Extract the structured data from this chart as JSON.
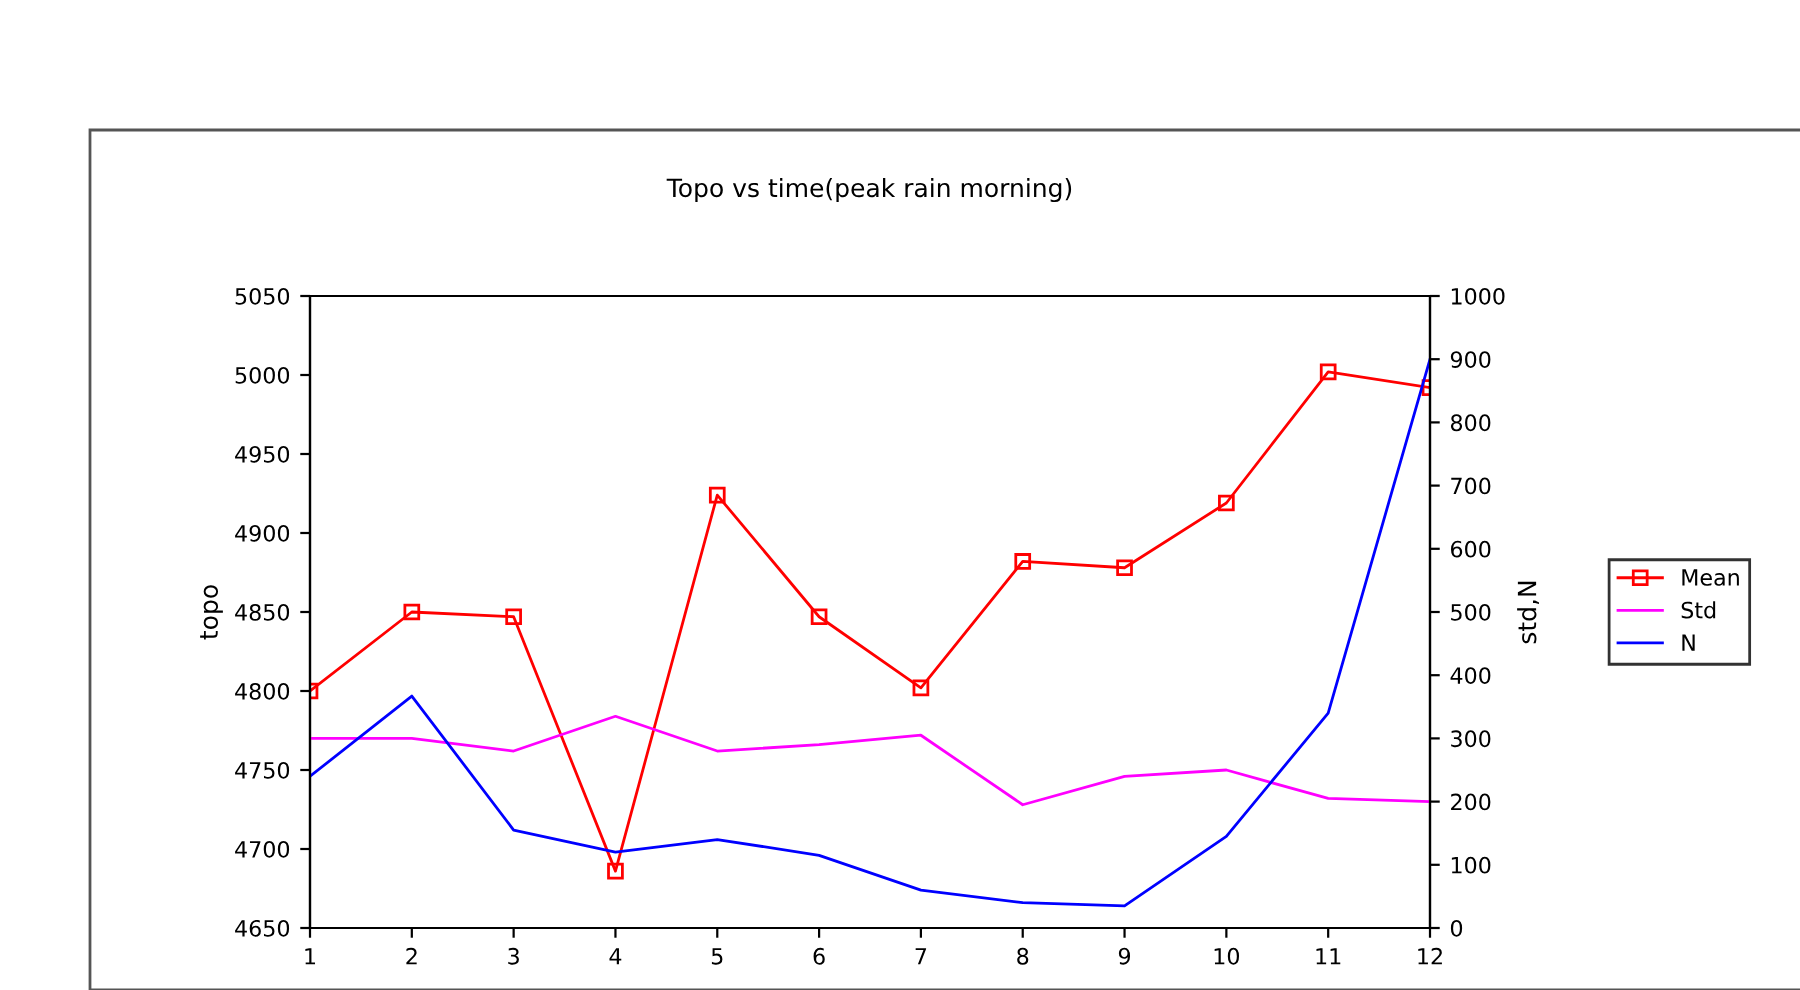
{
  "chart_data": {
    "type": "line",
    "title": "Topo vs time(peak rain morning)",
    "ylabel": "topo",
    "y2label": "std,N",
    "x": [
      1,
      2,
      3,
      4,
      5,
      6,
      7,
      8,
      9,
      10,
      11,
      12
    ],
    "xlim": [
      1,
      12
    ],
    "xticks": [
      1,
      2,
      3,
      4,
      5,
      6,
      7,
      8,
      9,
      10,
      11,
      12
    ],
    "ylim": [
      4650,
      5050
    ],
    "yticks": [
      4650,
      4700,
      4750,
      4800,
      4850,
      4900,
      4950,
      5000,
      5050
    ],
    "y2lim": [
      0,
      1000
    ],
    "y2ticks": [
      0,
      100,
      200,
      300,
      400,
      500,
      600,
      700,
      800,
      900,
      1000
    ],
    "grid": false,
    "legend": "right",
    "series": [
      {
        "name": "Mean",
        "color": "#ff0000",
        "marker": "square",
        "values": [
          4800,
          4850,
          4847,
          4686,
          4924,
          4847,
          4802,
          4882,
          4878,
          4919,
          5002,
          4992
        ]
      },
      {
        "name": "Std",
        "color": "#ff00ff",
        "axis": "y2",
        "marker": "none",
        "values": [
          300,
          300,
          280,
          335,
          280,
          290,
          305,
          195,
          240,
          250,
          205,
          200
        ]
      },
      {
        "name": "N",
        "color": "#0000ff",
        "axis": "y2",
        "marker": "none",
        "values": [
          240,
          367,
          155,
          120,
          140,
          115,
          60,
          40,
          35,
          145,
          340,
          900
        ]
      }
    ]
  }
}
